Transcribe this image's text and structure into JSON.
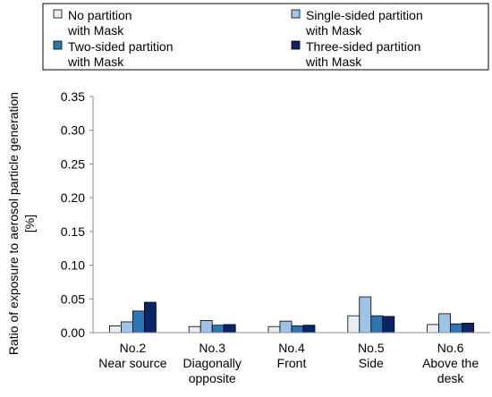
{
  "chart_data": {
    "type": "bar",
    "ylabel": [
      "Ratio of exposure to aerosol particle generation",
      "[%]"
    ],
    "xlabel": "",
    "ylim": [
      0,
      0.35
    ],
    "ytick_step": 0.05,
    "yticks": [
      "0.00",
      "0.05",
      "0.10",
      "0.15",
      "0.20",
      "0.25",
      "0.30",
      "0.35"
    ],
    "grid": false,
    "legend_position": "top",
    "categories": [
      [
        "No.2",
        "Near source"
      ],
      [
        "No.3",
        "Diagonally",
        "opposite"
      ],
      [
        "No.4",
        "Front"
      ],
      [
        "No.5",
        "Side"
      ],
      [
        "No.6",
        "Above the",
        "desk"
      ]
    ],
    "series": [
      {
        "name": [
          "No partition",
          "with Mask"
        ],
        "color": "#e8eef8",
        "values": [
          0.01,
          0.009,
          0.009,
          0.025,
          0.012
        ]
      },
      {
        "name": [
          "Single-sided partition",
          "with Mask"
        ],
        "color": "#9dc3e6",
        "values": [
          0.016,
          0.018,
          0.017,
          0.053,
          0.028
        ]
      },
      {
        "name": [
          "Two-sided partition",
          "with Mask"
        ],
        "color": "#2e75b6",
        "values": [
          0.032,
          0.011,
          0.01,
          0.025,
          0.013
        ]
      },
      {
        "name": [
          "Three-sided partition",
          "with Mask"
        ],
        "color": "#0a2466",
        "values": [
          0.045,
          0.012,
          0.011,
          0.024,
          0.014
        ]
      }
    ]
  }
}
